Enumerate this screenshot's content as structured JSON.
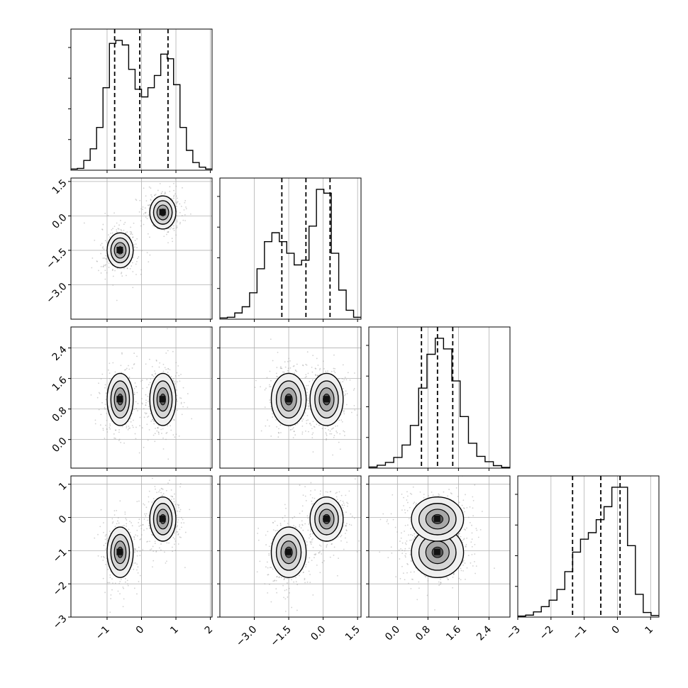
{
  "chart_data": {
    "type": "corner",
    "title": "",
    "grid": true,
    "parameters": [
      {
        "name": "",
        "range": [
          -2.05,
          2.05
        ]
      },
      {
        "name": "",
        "range": [
          -4.5,
          1.65
        ]
      },
      {
        "name": "",
        "range": [
          -0.75,
          2.95
        ]
      },
      {
        "name": "",
        "range": [
          -3.0,
          1.25
        ]
      }
    ],
    "ticks": [
      {
        "values": [
          -1,
          0,
          1,
          2
        ],
        "labels": [
          "−1",
          "0",
          "1",
          "2"
        ]
      },
      {
        "values": [
          -3.0,
          -1.5,
          0.0,
          1.5
        ],
        "labels": [
          "−3.0",
          "−1.5",
          "0.0",
          "1.5"
        ]
      },
      {
        "values": [
          0.0,
          0.8,
          1.6,
          2.4
        ],
        "labels": [
          "0.0",
          "0.8",
          "1.6",
          "2.4"
        ]
      },
      {
        "values": [
          -3,
          -2,
          -1,
          0,
          1
        ],
        "labels": [
          "−3",
          "−2",
          "−1",
          "0",
          "1"
        ]
      }
    ],
    "quantiles": [
      [
        -0.78,
        -0.05,
        0.77
      ],
      [
        -1.8,
        -0.75,
        0.3
      ],
      [
        0.63,
        1.05,
        1.45
      ],
      [
        -1.35,
        -0.5,
        0.08
      ]
    ],
    "histograms": [
      {
        "edges_range": [
          -2.05,
          2.05
        ],
        "counts": [
          0.4,
          0.6,
          3.2,
          7.0,
          14.0,
          27.0,
          41.5,
          42.5,
          41.0,
          33.0,
          26.5,
          24.0,
          27.0,
          31.0,
          38.0,
          36.5,
          28.0,
          14.0,
          6.5,
          2.5,
          1.0,
          0.4
        ]
      },
      {
        "edges_range": [
          -4.5,
          1.65
        ],
        "counts": [
          0.3,
          0.5,
          1.6,
          3.2,
          6.8,
          13.0,
          20.0,
          22.3,
          20.0,
          17.0,
          14.0,
          15.2,
          24.0,
          33.5,
          32.5,
          17.0,
          7.5,
          2.3,
          0.5
        ]
      },
      {
        "edges_range": [
          -0.75,
          2.95
        ],
        "counts": [
          0.3,
          0.8,
          1.6,
          3.0,
          6.5,
          12.0,
          22.5,
          32.0,
          36.5,
          33.5,
          24.5,
          14.5,
          7.0,
          3.3,
          1.8,
          0.7,
          0.2
        ]
      },
      {
        "edges_range": [
          -3.0,
          1.25
        ],
        "counts": [
          0.3,
          0.6,
          1.6,
          3.2,
          5.2,
          8.5,
          14.0,
          20.0,
          24.0,
          26.0,
          30.0,
          34.0,
          40.0,
          40.0,
          22.0,
          7.0,
          1.4,
          0.5
        ]
      }
    ],
    "density_modes": {
      "x0": [
        [
          -0.62,
          0.12,
          0.2
        ],
        [
          0.62,
          0.12,
          0.2
        ]
      ],
      "x1": [
        [
          -1.5,
          0.3,
          0.4
        ],
        [
          0.15,
          0.28,
          0.38
        ]
      ],
      "x2": [
        [
          1.05,
          0.36,
          0.36
        ],
        [
          1.05,
          0.36,
          0.36
        ]
      ],
      "x3": [
        [
          -1.05,
          0.35,
          0.4
        ],
        [
          -0.05,
          0.28,
          0.35
        ]
      ]
    }
  }
}
